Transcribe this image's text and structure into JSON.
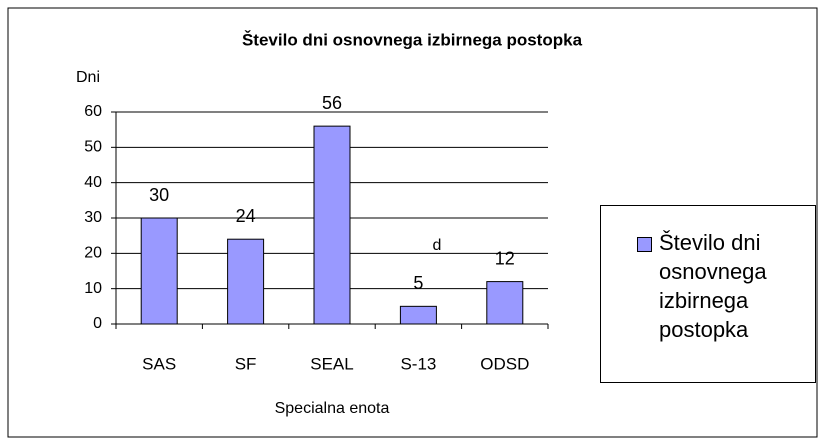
{
  "chart_data": {
    "type": "bar",
    "title": "Število dni osnovnega izbirnega postopka",
    "y_label": "Dni",
    "x_label": "Specialna enota",
    "annotation": "d",
    "categories": [
      "SAS",
      "SF",
      "SEAL",
      "S-13",
      "ODSD"
    ],
    "series": [
      {
        "name": "Število dni osnovnega izbirnega postopka",
        "color": "#9999ff",
        "values": [
          30,
          24,
          56,
          5,
          12
        ]
      }
    ],
    "ylim": [
      0,
      60
    ],
    "yticks": [
      0,
      10,
      20,
      30,
      40,
      50,
      60
    ],
    "grid": true,
    "legend": "right"
  }
}
